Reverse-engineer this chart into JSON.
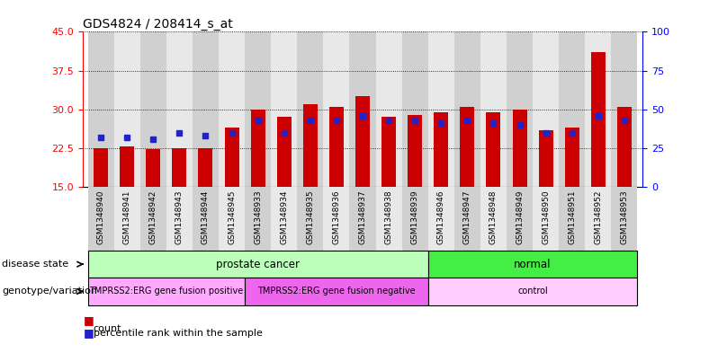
{
  "title": "GDS4824 / 208414_s_at",
  "samples": [
    "GSM1348940",
    "GSM1348941",
    "GSM1348942",
    "GSM1348943",
    "GSM1348944",
    "GSM1348945",
    "GSM1348933",
    "GSM1348934",
    "GSM1348935",
    "GSM1348936",
    "GSM1348937",
    "GSM1348938",
    "GSM1348939",
    "GSM1348946",
    "GSM1348947",
    "GSM1348948",
    "GSM1348949",
    "GSM1348950",
    "GSM1348951",
    "GSM1348952",
    "GSM1348953"
  ],
  "counts": [
    22.5,
    22.8,
    22.4,
    22.5,
    22.5,
    26.5,
    30.0,
    28.5,
    31.0,
    30.5,
    32.5,
    28.5,
    29.0,
    29.5,
    30.5,
    29.5,
    30.0,
    26.0,
    26.5,
    41.0,
    30.5
  ],
  "percentile_ranks_pct": [
    32,
    32,
    31,
    35,
    33,
    35,
    43,
    35,
    43,
    43,
    46,
    43,
    43,
    41,
    43,
    41,
    40,
    35,
    35,
    46,
    43
  ],
  "ylim_left": [
    15,
    45
  ],
  "yticks_left": [
    15,
    22.5,
    30,
    37.5,
    45
  ],
  "ylim_right": [
    0,
    100
  ],
  "yticks_right": [
    0,
    25,
    50,
    75,
    100
  ],
  "bar_color": "#cc0000",
  "marker_color": "#2222cc",
  "bg_color": "#ffffff",
  "disease_state_groups": [
    {
      "label": "prostate cancer",
      "start": 0,
      "end": 12,
      "color": "#bbffbb"
    },
    {
      "label": "normal",
      "start": 13,
      "end": 20,
      "color": "#44ee44"
    }
  ],
  "genotype_groups": [
    {
      "label": "TMPRSS2:ERG gene fusion positive",
      "start": 0,
      "end": 5,
      "color": "#ffaaff"
    },
    {
      "label": "TMPRSS2:ERG gene fusion negative",
      "start": 6,
      "end": 12,
      "color": "#ee66ee"
    },
    {
      "label": "control",
      "start": 13,
      "end": 20,
      "color": "#ffccff"
    }
  ],
  "label_disease": "disease state",
  "label_genotype": "genotype/variation",
  "legend_count": "count",
  "legend_percentile": "percentile rank within the sample",
  "col_bg_even": "#d0d0d0",
  "col_bg_odd": "#e8e8e8"
}
